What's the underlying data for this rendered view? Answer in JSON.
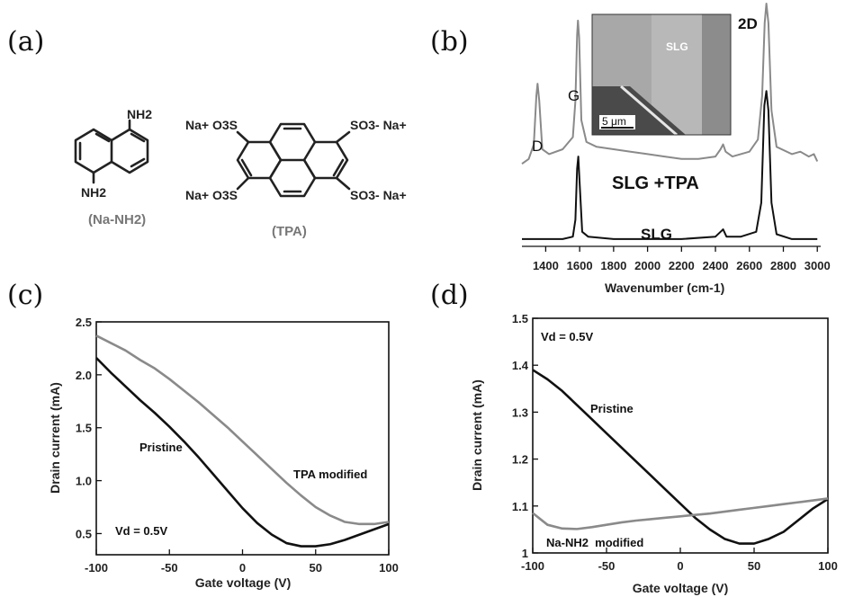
{
  "panel_labels": [
    "(a)",
    "(b)",
    "(c)",
    "(d)"
  ],
  "molecules": {
    "na_nh2": {
      "name": "(Na-NH2)",
      "substituent_top": "NH2",
      "substituent_bottom": "NH2"
    },
    "tpa": {
      "name": "(TPA)",
      "group_top_left": "Na+ O3S",
      "group_top_right": "SO3- Na+",
      "group_bottom_left": "Na+ O3S",
      "group_bottom_right": "SO3- Na+"
    }
  },
  "inset": {
    "label": "SLG",
    "scale_bar": "5 μm"
  },
  "chart_data": [
    {
      "panel": "(b)",
      "type": "line",
      "xlabel": "Wavenumber (cm-1)",
      "ylabel": "",
      "xlim": [
        1260,
        3020
      ],
      "xticks": [
        1400,
        1600,
        1800,
        2000,
        2200,
        2400,
        2600,
        2800,
        3000
      ],
      "y_axis_shown": false,
      "peak_labels": [
        {
          "text": "D",
          "x": 1350
        },
        {
          "text": "G",
          "x": 1590
        },
        {
          "text": "2D",
          "x": 2700
        }
      ],
      "series": [
        {
          "name": "SLG+TPA",
          "color": "#8a8a8a",
          "points": [
            [
              1260,
              0.34
            ],
            [
              1300,
              0.36
            ],
            [
              1330,
              0.42
            ],
            [
              1345,
              0.62
            ],
            [
              1352,
              0.67
            ],
            [
              1362,
              0.6
            ],
            [
              1380,
              0.4
            ],
            [
              1420,
              0.38
            ],
            [
              1500,
              0.4
            ],
            [
              1560,
              0.45
            ],
            [
              1575,
              0.6
            ],
            [
              1585,
              0.87
            ],
            [
              1590,
              0.93
            ],
            [
              1597,
              0.86
            ],
            [
              1610,
              0.52
            ],
            [
              1640,
              0.43
            ],
            [
              1700,
              0.41
            ],
            [
              1800,
              0.4
            ],
            [
              1900,
              0.39
            ],
            [
              2000,
              0.38
            ],
            [
              2100,
              0.37
            ],
            [
              2200,
              0.36
            ],
            [
              2300,
              0.36
            ],
            [
              2400,
              0.37
            ],
            [
              2430,
              0.4
            ],
            [
              2445,
              0.42
            ],
            [
              2460,
              0.39
            ],
            [
              2500,
              0.37
            ],
            [
              2600,
              0.39
            ],
            [
              2650,
              0.44
            ],
            [
              2675,
              0.62
            ],
            [
              2690,
              0.92
            ],
            [
              2700,
              1.0
            ],
            [
              2712,
              0.92
            ],
            [
              2730,
              0.56
            ],
            [
              2760,
              0.41
            ],
            [
              2850,
              0.38
            ],
            [
              2900,
              0.39
            ],
            [
              2950,
              0.37
            ],
            [
              2980,
              0.38
            ],
            [
              3000,
              0.35
            ]
          ]
        },
        {
          "name": "SLG",
          "color": "#111111",
          "points": [
            [
              1260,
              0.03
            ],
            [
              1400,
              0.03
            ],
            [
              1500,
              0.03
            ],
            [
              1560,
              0.04
            ],
            [
              1575,
              0.11
            ],
            [
              1585,
              0.32
            ],
            [
              1592,
              0.37
            ],
            [
              1600,
              0.26
            ],
            [
              1615,
              0.06
            ],
            [
              1650,
              0.04
            ],
            [
              1800,
              0.03
            ],
            [
              2000,
              0.03
            ],
            [
              2200,
              0.03
            ],
            [
              2400,
              0.04
            ],
            [
              2430,
              0.06
            ],
            [
              2445,
              0.07
            ],
            [
              2465,
              0.04
            ],
            [
              2550,
              0.04
            ],
            [
              2640,
              0.06
            ],
            [
              2670,
              0.18
            ],
            [
              2688,
              0.58
            ],
            [
              2700,
              0.64
            ],
            [
              2712,
              0.56
            ],
            [
              2730,
              0.18
            ],
            [
              2760,
              0.05
            ],
            [
              2850,
              0.03
            ],
            [
              3000,
              0.03
            ]
          ]
        }
      ],
      "annotations": [
        "SLG +TPA",
        "SLG"
      ]
    },
    {
      "panel": "(c)",
      "type": "line",
      "xlabel": "Gate voltage (V)",
      "ylabel": "Drain current (mA)",
      "xlim": [
        -100,
        100
      ],
      "ylim": [
        0.3,
        2.5
      ],
      "xticks": [
        -100,
        -50,
        0,
        50,
        100
      ],
      "yticks": [
        0.5,
        1.0,
        1.5,
        2.0,
        2.5
      ],
      "ytick_labels": [
        "0.5",
        "1.0",
        "1.5",
        "2.0",
        "2.5"
      ],
      "series": [
        {
          "name": "Pristine",
          "color": "#111111",
          "points": [
            [
              -100,
              2.16
            ],
            [
              -90,
              2.02
            ],
            [
              -80,
              1.89
            ],
            [
              -70,
              1.76
            ],
            [
              -60,
              1.64
            ],
            [
              -50,
              1.51
            ],
            [
              -40,
              1.37
            ],
            [
              -30,
              1.22
            ],
            [
              -20,
              1.06
            ],
            [
              -10,
              0.9
            ],
            [
              0,
              0.74
            ],
            [
              10,
              0.6
            ],
            [
              20,
              0.49
            ],
            [
              30,
              0.41
            ],
            [
              40,
              0.38
            ],
            [
              50,
              0.38
            ],
            [
              60,
              0.4
            ],
            [
              70,
              0.44
            ],
            [
              80,
              0.49
            ],
            [
              90,
              0.54
            ],
            [
              100,
              0.59
            ]
          ]
        },
        {
          "name": "TPA modified",
          "color": "#8a8a8a",
          "points": [
            [
              -100,
              2.37
            ],
            [
              -90,
              2.3
            ],
            [
              -80,
              2.23
            ],
            [
              -70,
              2.14
            ],
            [
              -60,
              2.06
            ],
            [
              -50,
              1.96
            ],
            [
              -40,
              1.85
            ],
            [
              -30,
              1.74
            ],
            [
              -20,
              1.62
            ],
            [
              -10,
              1.5
            ],
            [
              0,
              1.37
            ],
            [
              10,
              1.24
            ],
            [
              20,
              1.11
            ],
            [
              30,
              0.98
            ],
            [
              40,
              0.86
            ],
            [
              50,
              0.75
            ],
            [
              60,
              0.67
            ],
            [
              70,
              0.61
            ],
            [
              80,
              0.59
            ],
            [
              90,
              0.59
            ],
            [
              100,
              0.61
            ]
          ]
        }
      ],
      "annotations": [
        "Pristine",
        "TPA modified",
        "Vd = 0.5V"
      ]
    },
    {
      "panel": "(d)",
      "type": "line",
      "xlabel": "Gate voltage (V)",
      "ylabel": "Drain current (mA)",
      "xlim": [
        -100,
        100
      ],
      "ylim": [
        1.0,
        1.5
      ],
      "xticks": [
        -100,
        -50,
        0,
        50,
        100
      ],
      "yticks": [
        1.0,
        1.1,
        1.2,
        1.3,
        1.4,
        1.5
      ],
      "ytick_labels": [
        "1",
        "1.1",
        "1.2",
        "1.3",
        "1.4",
        "1.5"
      ],
      "series": [
        {
          "name": "Pristine",
          "color": "#111111",
          "points": [
            [
              -100,
              1.39
            ],
            [
              -90,
              1.37
            ],
            [
              -80,
              1.345
            ],
            [
              -70,
              1.315
            ],
            [
              -60,
              1.285
            ],
            [
              -50,
              1.255
            ],
            [
              -40,
              1.225
            ],
            [
              -30,
              1.195
            ],
            [
              -20,
              1.165
            ],
            [
              -10,
              1.135
            ],
            [
              0,
              1.105
            ],
            [
              10,
              1.075
            ],
            [
              20,
              1.05
            ],
            [
              30,
              1.03
            ],
            [
              40,
              1.02
            ],
            [
              50,
              1.02
            ],
            [
              60,
              1.03
            ],
            [
              70,
              1.045
            ],
            [
              80,
              1.07
            ],
            [
              90,
              1.095
            ],
            [
              100,
              1.115
            ]
          ]
        },
        {
          "name": "Na-NH2 modified",
          "color": "#8a8a8a",
          "points": [
            [
              -100,
              1.085
            ],
            [
              -90,
              1.06
            ],
            [
              -80,
              1.052
            ],
            [
              -70,
              1.051
            ],
            [
              -60,
              1.055
            ],
            [
              -50,
              1.06
            ],
            [
              -40,
              1.065
            ],
            [
              -30,
              1.069
            ],
            [
              -20,
              1.072
            ],
            [
              -10,
              1.075
            ],
            [
              0,
              1.078
            ],
            [
              10,
              1.081
            ],
            [
              20,
              1.084
            ],
            [
              30,
              1.088
            ],
            [
              40,
              1.092
            ],
            [
              50,
              1.096
            ],
            [
              60,
              1.1
            ],
            [
              70,
              1.104
            ],
            [
              80,
              1.108
            ],
            [
              90,
              1.112
            ],
            [
              100,
              1.116
            ]
          ]
        }
      ],
      "annotations": [
        "Pristine",
        "Na-NH2  modified",
        "Vd = 0.5V"
      ]
    }
  ]
}
